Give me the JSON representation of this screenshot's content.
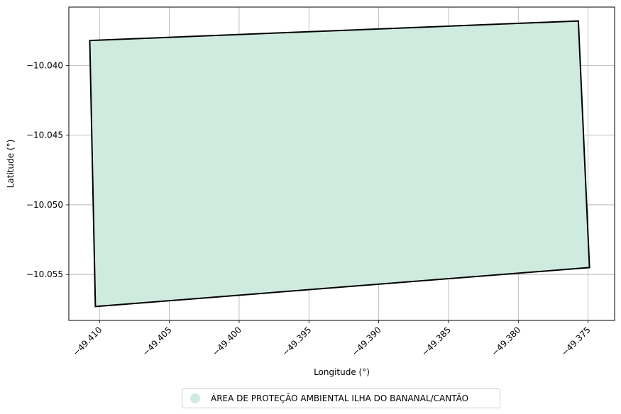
{
  "chart_data": {
    "type": "area",
    "xlabel": "Longitude (°)",
    "ylabel": "Latitude (°)",
    "xlim": [
      -49.4122,
      -49.3731
    ],
    "ylim": [
      -10.0583,
      -10.0358
    ],
    "x_ticks": [
      -49.41,
      -49.405,
      -49.4,
      -49.395,
      -49.39,
      -49.385,
      -49.38,
      -49.375
    ],
    "x_tick_labels": [
      "−49.410",
      "−49.405",
      "−49.400",
      "−49.395",
      "−49.390",
      "−49.385",
      "−49.380",
      "−49.375"
    ],
    "y_ticks": [
      -10.04,
      -10.045,
      -10.05,
      -10.055
    ],
    "y_tick_labels": [
      "−10.040",
      "−10.045",
      "−10.050",
      "−10.055"
    ],
    "grid": true,
    "legend_placement": "bottom-center",
    "fill_color": "#cfebdf",
    "edge_color": "#000000",
    "series": [
      {
        "name": "ÁREA DE PROTEÇÃO AMBIENTAL ILHA DO BANANAL/CANTÃO",
        "polygon": [
          {
            "x": -49.4107,
            "y": -10.0382
          },
          {
            "x": -49.3757,
            "y": -10.0368
          },
          {
            "x": -49.3749,
            "y": -10.0545
          },
          {
            "x": -49.4103,
            "y": -10.0573
          }
        ]
      }
    ]
  }
}
